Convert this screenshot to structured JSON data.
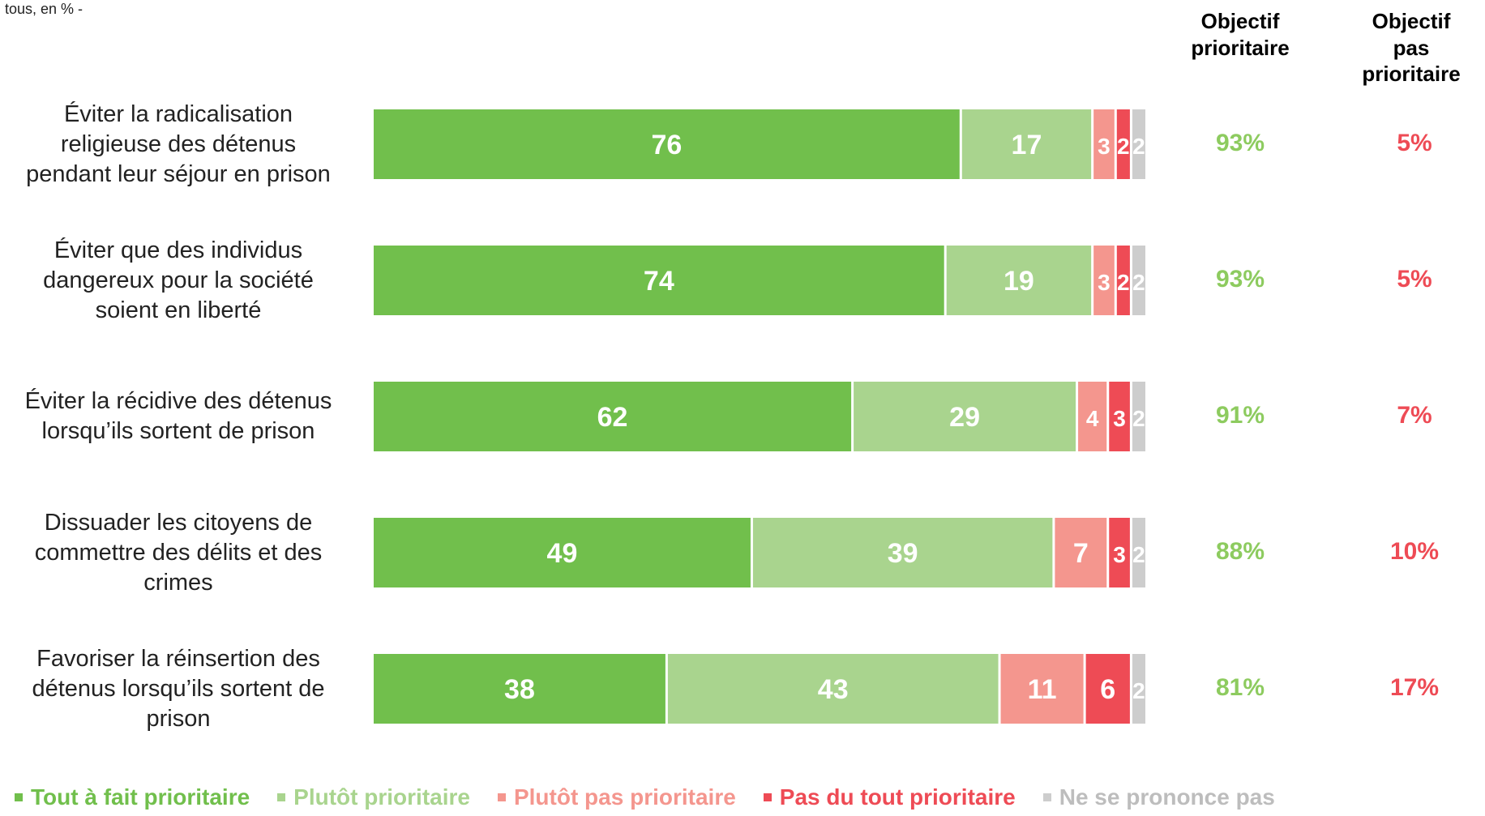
{
  "note": "tous, en % -",
  "columns": {
    "prioritaire": "Objectif\nprioritaire",
    "pas_prioritaire": "Objectif\npas\nprioritaire"
  },
  "colors": {
    "tout_a_fait": "#71bf4c",
    "plutot": "#a9d48e",
    "plutot_pas": "#f4968e",
    "pas_du_tout": "#ee4b55",
    "nsp": "#cdcdcd",
    "total_yes": "#8dcb5f",
    "total_no": "#ee4b55"
  },
  "chart_data": {
    "type": "bar",
    "orientation": "horizontal",
    "stacked": true,
    "categories": [
      "Éviter la radicalisation\nreligieuse des détenus\npendant leur séjour en prison",
      "Éviter que des individus\ndangereux pour la société\nsoient en liberté",
      "Éviter la récidive des détenus\nlorsqu’ils sortent de prison",
      "Dissuader les citoyens de\ncommettre des délits et des\ncrimes",
      "Favoriser la réinsertion des\ndétenus lorsqu’ils sortent de\nprison"
    ],
    "series": [
      {
        "name": "Tout à fait prioritaire",
        "values": [
          76,
          74,
          62,
          49,
          38
        ]
      },
      {
        "name": "Plutôt prioritaire",
        "values": [
          17,
          19,
          29,
          39,
          43
        ]
      },
      {
        "name": "Plutôt pas prioritaire",
        "values": [
          3,
          3,
          4,
          7,
          11
        ]
      },
      {
        "name": "Pas du tout prioritaire",
        "values": [
          2,
          2,
          3,
          3,
          6
        ]
      },
      {
        "name": "Ne se prononce pas",
        "values": [
          2,
          2,
          2,
          2,
          2
        ]
      }
    ],
    "totals_prioritaire": [
      "93%",
      "93%",
      "91%",
      "88%",
      "81%"
    ],
    "totals_pas_prioritaire": [
      "5%",
      "5%",
      "7%",
      "10%",
      "17%"
    ],
    "legend_position": "bottom",
    "grid": false
  }
}
